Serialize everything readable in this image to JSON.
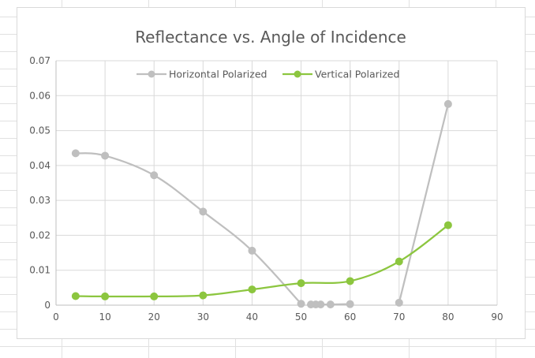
{
  "chart_data": {
    "type": "scatter",
    "title": "Reflectance vs. Angle of Incidence",
    "xlabel": "",
    "ylabel": "",
    "xlim": [
      0,
      90
    ],
    "ylim": [
      0,
      0.07
    ],
    "x_ticks": [
      "0",
      "10",
      "20",
      "30",
      "40",
      "50",
      "60",
      "70",
      "80",
      "90"
    ],
    "y_ticks": [
      "0",
      "0.01",
      "0.02",
      "0.03",
      "0.04",
      "0.05",
      "0.06",
      "0.07"
    ],
    "grid": true,
    "legend_position": "top",
    "smoothed_lines": true,
    "series": [
      {
        "name": "Horizontal Polarized",
        "color": "#bfbfbf",
        "segments": [
          [
            [
              4,
              0.0435
            ],
            [
              10,
              0.0428
            ],
            [
              20,
              0.0372
            ],
            [
              30,
              0.0268
            ],
            [
              40,
              0.0156
            ],
            [
              50,
              0.0004
            ]
          ],
          [
            [
              52,
              0.0002
            ],
            [
              53,
              0.0002
            ],
            [
              54,
              0.0002
            ],
            [
              56,
              0.0002
            ],
            [
              60,
              0.0003
            ]
          ],
          [
            [
              70,
              0.0007
            ],
            [
              80,
              0.0576
            ]
          ]
        ]
      },
      {
        "name": "Vertical Polarized",
        "color": "#8cc63f",
        "segments": [
          [
            [
              4,
              0.0026
            ],
            [
              10,
              0.0025
            ],
            [
              20,
              0.0025
            ],
            [
              30,
              0.0028
            ],
            [
              40,
              0.0045
            ],
            [
              50,
              0.0063
            ],
            [
              60,
              0.0069
            ],
            [
              70,
              0.0125
            ],
            [
              80,
              0.0229
            ]
          ]
        ]
      }
    ]
  }
}
